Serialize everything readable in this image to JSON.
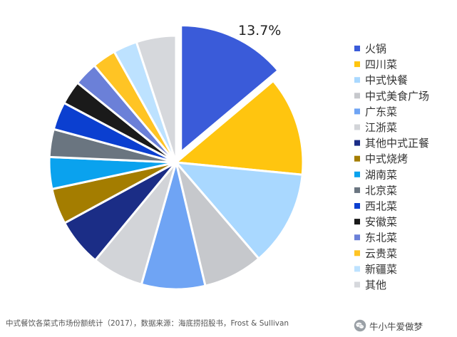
{
  "chart_data": {
    "type": "pie",
    "title": "",
    "explode_index": 0,
    "start_angle_deg": 0,
    "slice_label": {
      "index": 0,
      "text": "13.7%"
    },
    "legend_position": "right",
    "slices": [
      {
        "label": "火锅",
        "value": 13.7,
        "color": "#3A5BD9"
      },
      {
        "label": "四川菜",
        "value": 12.5,
        "color": "#FFC50F"
      },
      {
        "label": "中式快餐",
        "value": 12.0,
        "color": "#A9D8FF"
      },
      {
        "label": "中式美食广场",
        "value": 7.5,
        "color": "#C6C8CC"
      },
      {
        "label": "广东菜",
        "value": 8.0,
        "color": "#6FA4F4"
      },
      {
        "label": "江浙菜",
        "value": 6.5,
        "color": "#D2D4D8"
      },
      {
        "label": "其他中式正餐",
        "value": 6.0,
        "color": "#1B2D86"
      },
      {
        "label": "中式烧烤",
        "value": 4.5,
        "color": "#A47D00"
      },
      {
        "label": "湖南菜",
        "value": 4.0,
        "color": "#0AA2EE"
      },
      {
        "label": "北京菜",
        "value": 3.5,
        "color": "#6A7580"
      },
      {
        "label": "西北菜",
        "value": 3.5,
        "color": "#0B3FD0"
      },
      {
        "label": "安徽菜",
        "value": 3.0,
        "color": "#1A1A1A"
      },
      {
        "label": "东北菜",
        "value": 3.0,
        "color": "#6B80D8"
      },
      {
        "label": "云贵菜",
        "value": 3.0,
        "color": "#FFC424"
      },
      {
        "label": "新疆菜",
        "value": 3.0,
        "color": "#BDE2FF"
      },
      {
        "label": "其他",
        "value": 5.0,
        "color": "#D6D8DC"
      }
    ]
  },
  "caption": "中式餐饮各菜式市场份额统计（2017），数据来源：海底捞招股书，Frost & Sullivan",
  "watermark": {
    "icon": "wechat-icon",
    "text": "牛小牛爱做梦"
  }
}
